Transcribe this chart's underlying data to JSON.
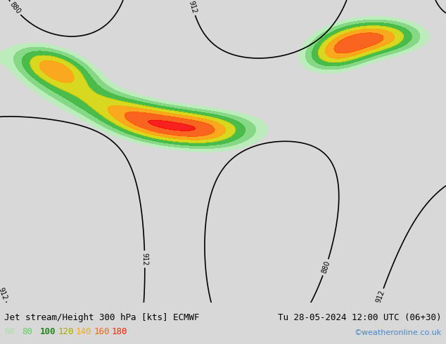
{
  "title_left": "Jet stream/Height 300 hPa [kts] ECMWF",
  "title_right": "Tu 28-05-2024 12:00 UTC (06+30)",
  "copyright": "©weatheronline.co.uk",
  "legend_values": [
    "60",
    "80",
    "100",
    "120",
    "140",
    "160",
    "180"
  ],
  "legend_colors": [
    "#90ee90",
    "#32cd32",
    "#006400",
    "#ffd700",
    "#ffa500",
    "#ff4500",
    "#ff0000"
  ],
  "bg_color": "#e8e8e8",
  "map_bg": "#f0f0f0",
  "title_fontsize": 9,
  "legend_fontsize": 9
}
